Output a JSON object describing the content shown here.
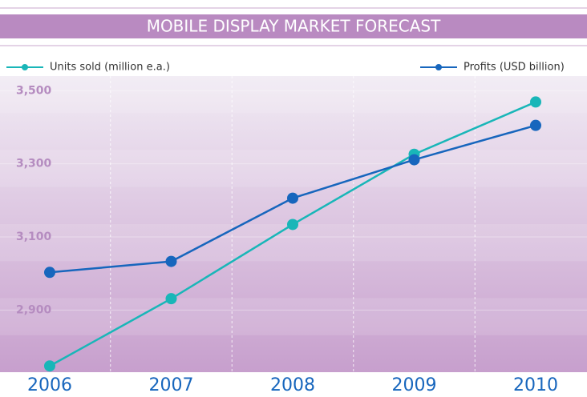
{
  "chart_data": {
    "type": "line",
    "title": "MOBILE DISPLAY MARKET FORECAST",
    "categories": [
      "2006",
      "2007",
      "2008",
      "2009",
      "2010"
    ],
    "series": [
      {
        "name": "Units sold (million e.a.)",
        "color": "#19b6b8",
        "values": [
          2747,
          2931,
          3134,
          3326,
          3469
        ]
      },
      {
        "name": "Profits (USD billion)",
        "color": "#1766bd",
        "values": [
          3003,
          3033,
          3206,
          3311,
          3405
        ]
      }
    ],
    "ylim": [
      2730,
      3540
    ],
    "yticks": [
      {
        "value": 2900,
        "label": "2,900"
      },
      {
        "value": 3100,
        "label": "3,100"
      },
      {
        "value": 3300,
        "label": "3,300"
      },
      {
        "value": 3500,
        "label": "3,500"
      }
    ],
    "grid": true
  }
}
